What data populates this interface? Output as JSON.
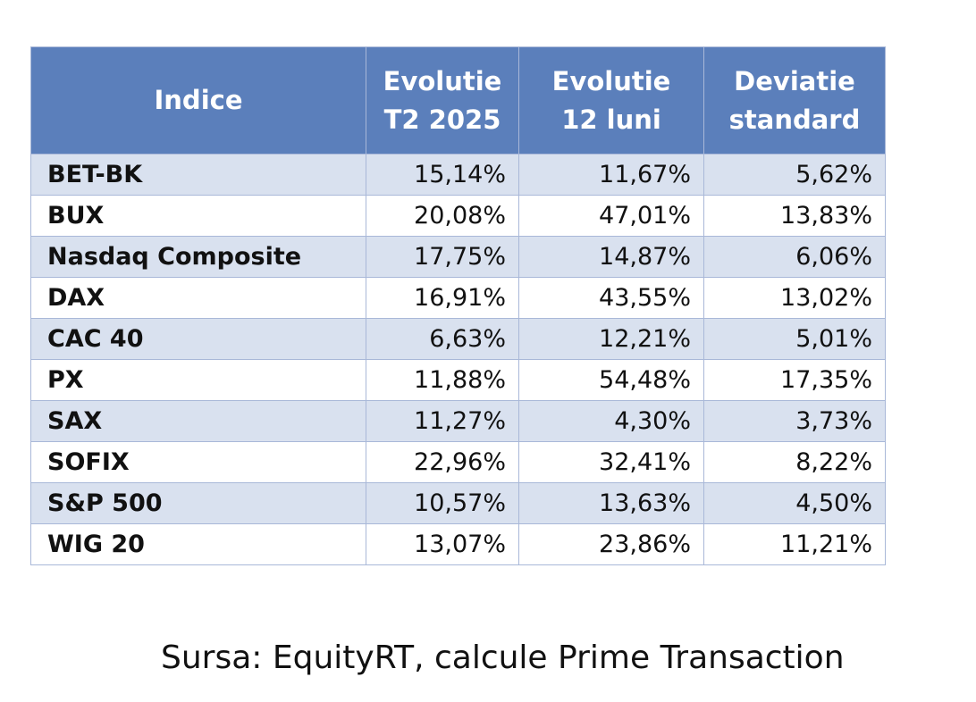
{
  "chart_data": {
    "type": "table",
    "columns": [
      {
        "line1": "Indice",
        "line2": ""
      },
      {
        "line1": "Evolutie",
        "line2": "T2 2025"
      },
      {
        "line1": "Evolutie",
        "line2": "12 luni"
      },
      {
        "line1": "Deviatie",
        "line2": "standard"
      }
    ],
    "rows": [
      {
        "name": "BET-BK",
        "t2_2025": "15,14%",
        "luni_12": "11,67%",
        "deviatie": "5,62%"
      },
      {
        "name": "BUX",
        "t2_2025": "20,08%",
        "luni_12": "47,01%",
        "deviatie": "13,83%"
      },
      {
        "name": "Nasdaq Composite",
        "t2_2025": "17,75%",
        "luni_12": "14,87%",
        "deviatie": "6,06%"
      },
      {
        "name": "DAX",
        "t2_2025": "16,91%",
        "luni_12": "43,55%",
        "deviatie": "13,02%"
      },
      {
        "name": "CAC 40",
        "t2_2025": "6,63%",
        "luni_12": "12,21%",
        "deviatie": "5,01%"
      },
      {
        "name": "PX",
        "t2_2025": "11,88%",
        "luni_12": "54,48%",
        "deviatie": "17,35%"
      },
      {
        "name": "SAX",
        "t2_2025": "11,27%",
        "luni_12": "4,30%",
        "deviatie": "3,73%"
      },
      {
        "name": "SOFIX",
        "t2_2025": "22,96%",
        "luni_12": "32,41%",
        "deviatie": "8,22%"
      },
      {
        "name": "S&P 500",
        "t2_2025": "10,57%",
        "luni_12": "13,63%",
        "deviatie": "4,50%"
      },
      {
        "name": "WIG 20",
        "t2_2025": "13,07%",
        "luni_12": "23,86%",
        "deviatie": "11,21%"
      }
    ],
    "source": "Sursa: EquityRT, calcule Prime Transaction"
  },
  "colors": {
    "header_bg": "#5b7fbb",
    "band_bg": "#d9e1ef",
    "border": "#a9b8d8"
  }
}
